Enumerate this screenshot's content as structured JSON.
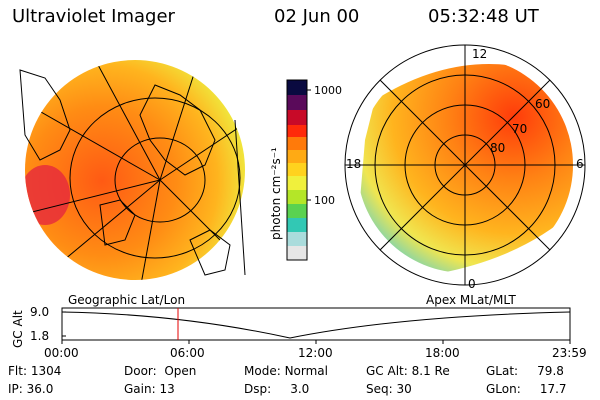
{
  "header": {
    "instrument": "Ultraviolet Imager",
    "date": "02 Jun 00",
    "time": "05:32:48 UT"
  },
  "colorbar": {
    "unit_label": "photon cm⁻²s⁻¹",
    "ticks": [
      "1000",
      "100"
    ],
    "colors": [
      "#0a0a40",
      "#5a0a5a",
      "#c80a28",
      "#ff2a0a",
      "#ff7a0a",
      "#ffaa14",
      "#ffd21e",
      "#f0f03c",
      "#b4e628",
      "#5ad250",
      "#32c8b4",
      "#aadcdc",
      "#e6e6e6"
    ]
  },
  "left_map": {
    "caption": "Geographic Lat/Lon"
  },
  "right_map": {
    "caption": "Apex MLat/MLT",
    "mlt_labels": {
      "top": "12",
      "left": "18",
      "right": "6",
      "bottom": "0"
    },
    "lat_labels": [
      "60",
      "70",
      "80"
    ]
  },
  "altitude_plot": {
    "ylabel": "GC Alt",
    "ticks": [
      "9.0",
      "1.8"
    ],
    "time_ticks": [
      "00:00",
      "06:00",
      "12:00",
      "18:00",
      "23:59"
    ],
    "current_marker": "05:32:48"
  },
  "status": {
    "flt_label": "Flt:",
    "flt_value": "1304",
    "ip_label": "IP:",
    "ip_value": "36.0",
    "door_label": "Door:",
    "door_value": "Open",
    "gain_label": "Gain:",
    "gain_value": "13",
    "mode_label": "Mode:",
    "mode_value": "Normal",
    "dsp_label": "Dsp:",
    "dsp_value": "3.0",
    "gcalt_label": "GC Alt:",
    "gcalt_value": "8.1 Re",
    "seq_label": "Seq:",
    "seq_value": "30",
    "glat_label": "GLat:",
    "glat_value": "79.8",
    "glon_label": "GLon:",
    "glon_value": "17.7"
  }
}
